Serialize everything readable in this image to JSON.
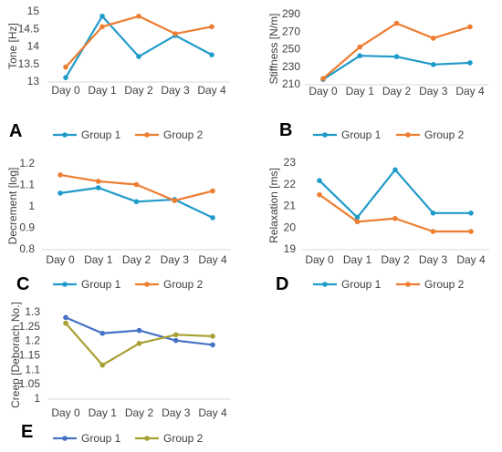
{
  "chart_data": [
    {
      "panel": "A",
      "type": "line",
      "categories": [
        "Day 0",
        "Day 1",
        "Day 2",
        "Day 3",
        "Day 4"
      ],
      "ylabel": "Tone [Hz]",
      "ylim": [
        13,
        15
      ],
      "yticks": [
        "13",
        "13.5",
        "14",
        "14.5",
        "15"
      ],
      "series": [
        {
          "name": "Group 1",
          "color": "#1f9bc9",
          "values": [
            13.1,
            14.85,
            13.7,
            14.3,
            13.75
          ]
        },
        {
          "name": "Group 2",
          "color": "#ed7d31",
          "values": [
            13.4,
            14.55,
            14.85,
            14.35,
            14.55
          ]
        }
      ],
      "legend": "bottom",
      "grid": false
    },
    {
      "panel": "B",
      "type": "line",
      "categories": [
        "Day 0",
        "Day 1",
        "Day 2",
        "Day 3",
        "Day 4"
      ],
      "ylabel": "Stiffness [N/m]",
      "ylim": [
        210,
        290
      ],
      "yticks": [
        "210",
        "230",
        "250",
        "270",
        "290"
      ],
      "series": [
        {
          "name": "Group 1",
          "color": "#1f9bc9",
          "values": [
            215,
            242,
            241,
            232,
            234
          ]
        },
        {
          "name": "Group 2",
          "color": "#ed7d31",
          "values": [
            216,
            252,
            279,
            262,
            275
          ]
        }
      ],
      "legend": "bottom",
      "grid": false
    },
    {
      "panel": "C",
      "type": "line",
      "categories": [
        "Day 0",
        "Day 1",
        "Day 2",
        "Day 3",
        "Day 4"
      ],
      "ylabel": "Decrement [log]",
      "ylim": [
        0.8,
        1.2
      ],
      "yticks": [
        "0.8",
        "0.9",
        "1",
        "1.1",
        "1.2"
      ],
      "series": [
        {
          "name": "Group 1",
          "color": "#1f9bc9",
          "values": [
            1.06,
            1.085,
            1.02,
            1.03,
            0.945
          ]
        },
        {
          "name": "Group 2",
          "color": "#ed7d31",
          "values": [
            1.145,
            1.115,
            1.1,
            1.025,
            1.07
          ]
        }
      ],
      "legend": "bottom",
      "grid": false
    },
    {
      "panel": "D",
      "type": "line",
      "categories": [
        "Day 0",
        "Day 1",
        "Day 2",
        "Day 3",
        "Day 4"
      ],
      "ylabel": "Relaxation [ms]",
      "ylim": [
        19,
        23
      ],
      "yticks": [
        "19",
        "20",
        "21",
        "22",
        "23"
      ],
      "series": [
        {
          "name": "Group 1",
          "color": "#1f9bc9",
          "values": [
            22.15,
            20.45,
            22.65,
            20.65,
            20.65
          ]
        },
        {
          "name": "Group 2",
          "color": "#ed7d31",
          "values": [
            21.5,
            20.25,
            20.4,
            19.8,
            19.8
          ]
        }
      ],
      "legend": "bottom",
      "grid": false
    },
    {
      "panel": "E",
      "type": "line",
      "categories": [
        "Day 0",
        "Day 1",
        "Day 2",
        "Day 3",
        "Day 4"
      ],
      "ylabel": "Creep [Deborach No.]",
      "ylim": [
        1,
        1.3
      ],
      "yticks": [
        "1",
        "1.05",
        "1.1",
        "1.15",
        "1.2",
        "1.25",
        "1.3"
      ],
      "series": [
        {
          "name": "Group 1",
          "color": "#4472c4",
          "values": [
            1.28,
            1.225,
            1.235,
            1.2,
            1.185
          ]
        },
        {
          "name": "Group 2",
          "color": "#a6a033",
          "values": [
            1.26,
            1.115,
            1.19,
            1.22,
            1.215
          ]
        }
      ],
      "legend": "bottom",
      "grid": false
    }
  ]
}
